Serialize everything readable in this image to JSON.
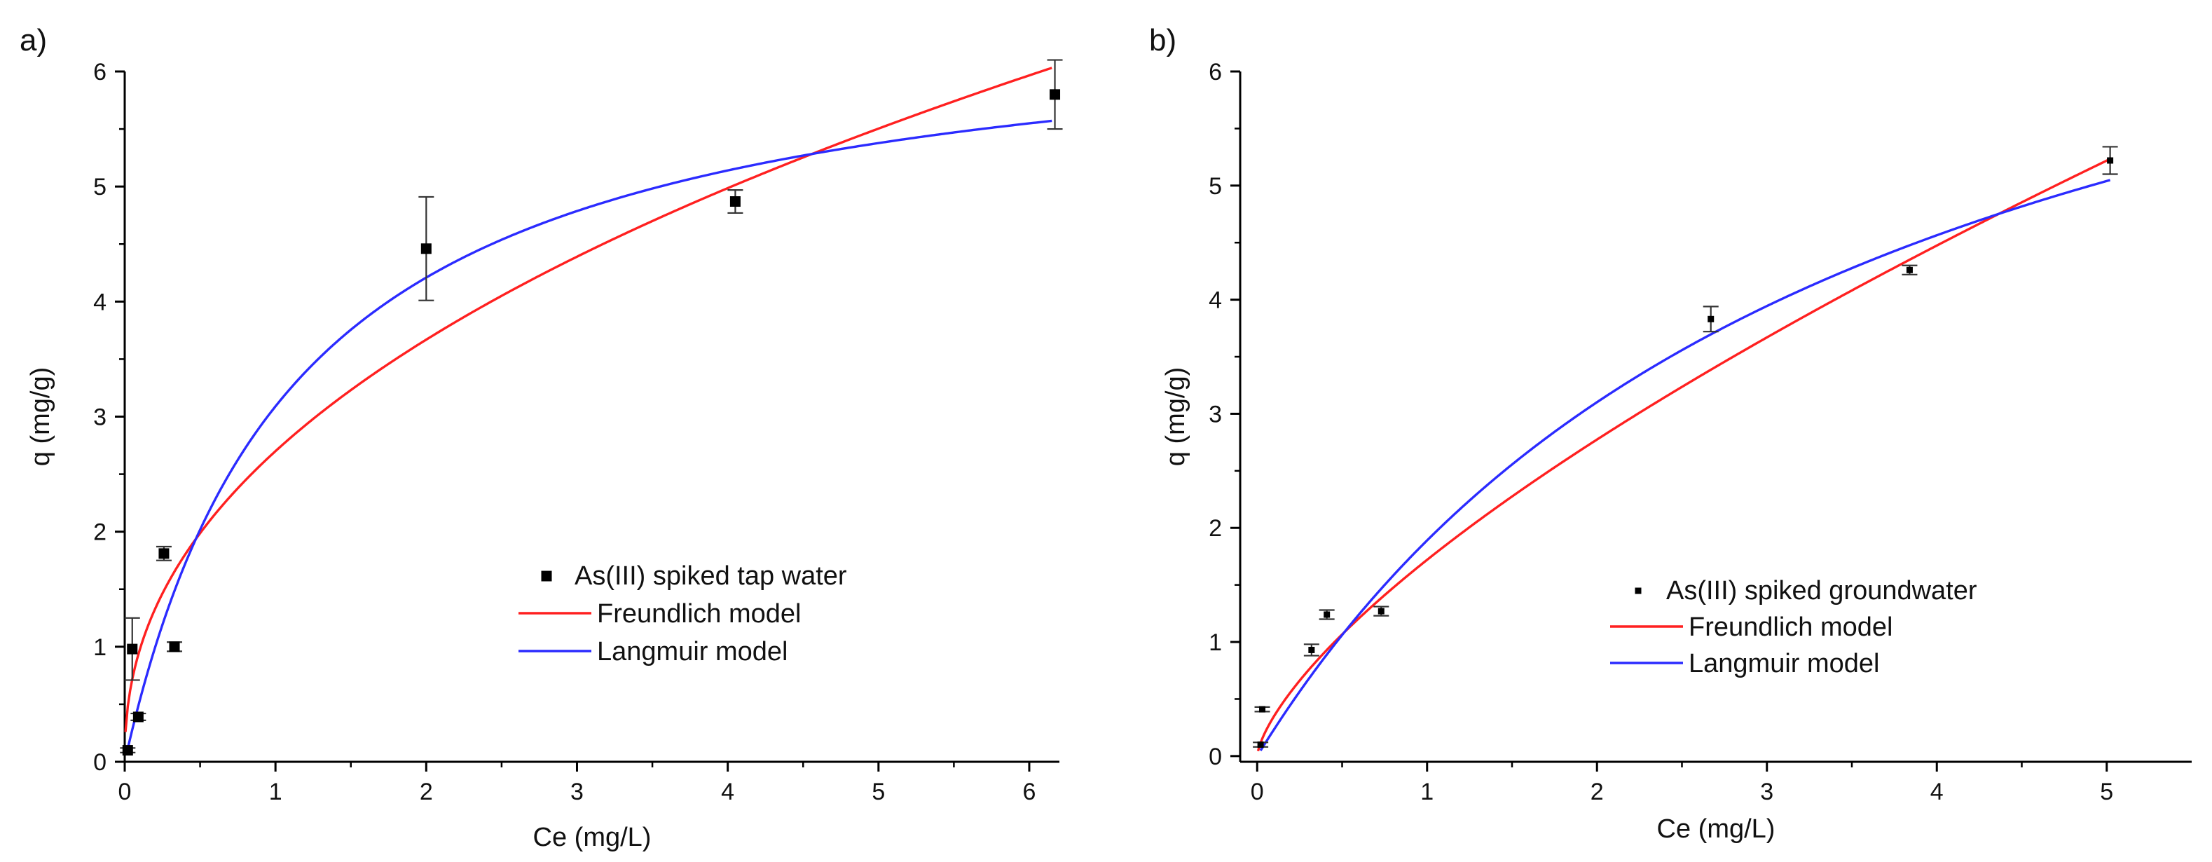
{
  "chart_data": [
    {
      "type": "scatter",
      "panel_label": "a)",
      "xlabel": "Ce (mg/L)",
      "ylabel": "q (mg/g)",
      "xlim": [
        0,
        6.2
      ],
      "ylim": [
        0,
        6
      ],
      "xticks": [
        0,
        1,
        2,
        3,
        4,
        5,
        6
      ],
      "yticks": [
        0,
        1,
        2,
        3,
        4,
        5,
        6
      ],
      "legend_position": "lower-right",
      "marker_size": "large",
      "series": [
        {
          "name": "As(III) spiked tap water",
          "kind": "points",
          "color": "#000000",
          "points": [
            {
              "x": 0.02,
              "y": 0.1,
              "err": 0.02
            },
            {
              "x": 0.05,
              "y": 0.98,
              "err": 0.27
            },
            {
              "x": 0.09,
              "y": 0.39,
              "err": 0.03
            },
            {
              "x": 0.26,
              "y": 1.81,
              "err": 0.06
            },
            {
              "x": 0.33,
              "y": 1.0,
              "err": 0.04
            },
            {
              "x": 2.0,
              "y": 4.46,
              "err": 0.45
            },
            {
              "x": 4.05,
              "y": 4.87,
              "err": 0.1
            },
            {
              "x": 6.17,
              "y": 5.8,
              "err": 0.3
            }
          ]
        },
        {
          "name": "Freundlich model",
          "kind": "freundlich",
          "color": "#ff2020",
          "K": 2.7,
          "n": 2.26,
          "x_range": [
            0.005,
            6.15
          ]
        },
        {
          "name": "Langmuir model",
          "kind": "langmuir",
          "color": "#2b2bff",
          "qmax": 6.6,
          "KL": 0.88,
          "x_range": [
            0.02,
            6.15
          ]
        }
      ]
    },
    {
      "type": "scatter",
      "panel_label": "b)",
      "xlabel": "Ce (mg/L)",
      "ylabel": "q (mg/g)",
      "xlim": [
        -0.1,
        5.5
      ],
      "ylim": [
        -0.05,
        6
      ],
      "xticks": [
        0,
        1,
        2,
        3,
        4,
        5
      ],
      "yticks": [
        0,
        1,
        2,
        3,
        4,
        5,
        6
      ],
      "legend_position": "lower-right",
      "marker_size": "small",
      "series": [
        {
          "name": "As(III) spiked groundwater",
          "kind": "points",
          "color": "#000000",
          "points": [
            {
              "x": 0.02,
              "y": 0.1,
              "err": 0.02
            },
            {
              "x": 0.03,
              "y": 0.41,
              "err": 0.02
            },
            {
              "x": 0.32,
              "y": 0.93,
              "err": 0.05
            },
            {
              "x": 0.41,
              "y": 1.24,
              "err": 0.04
            },
            {
              "x": 0.73,
              "y": 1.27,
              "err": 0.04
            },
            {
              "x": 2.67,
              "y": 3.83,
              "err": 0.11
            },
            {
              "x": 3.84,
              "y": 4.26,
              "err": 0.04
            },
            {
              "x": 5.02,
              "y": 5.22,
              "err": 0.12
            }
          ]
        },
        {
          "name": "Freundlich model",
          "kind": "freundlich",
          "color": "#ff2020",
          "K": 1.72,
          "n": 1.45,
          "x_range": [
            0.005,
            5.02
          ]
        },
        {
          "name": "Langmuir model",
          "kind": "langmuir",
          "color": "#2b2bff",
          "qmax": 8.64,
          "KL": 0.28,
          "x_range": [
            0.02,
            5.02
          ]
        }
      ]
    }
  ]
}
